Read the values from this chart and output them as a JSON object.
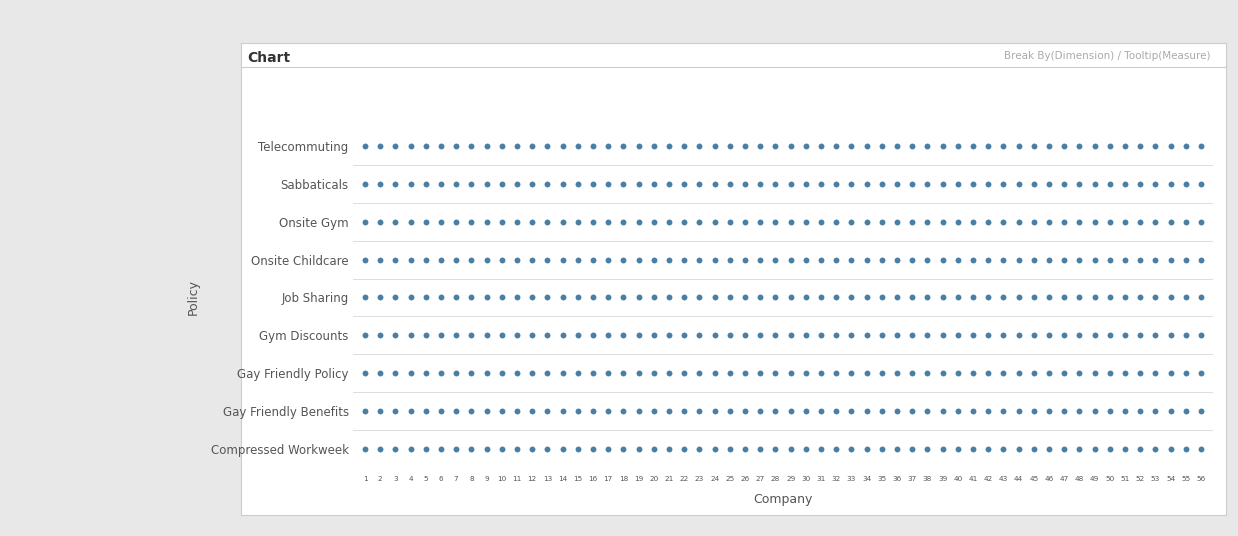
{
  "title": "Chart",
  "xlabel": "Company",
  "ylabel": "Policy",
  "policies": [
    "Telecommuting",
    "Sabbaticals",
    "Onsite Gym",
    "Onsite Childcare",
    "Job Sharing",
    "Gym Discounts",
    "Gay Friendly Policy",
    "Gay Friendly Benefits",
    "Compressed Workweek"
  ],
  "x_min": 1,
  "x_max": 56,
  "dot_color": "#4a7fa5",
  "dot_size": 18,
  "outer_bg": "#e8e8e8",
  "chart_bg": "#ffffff",
  "header_text": "Break By(Dimension) / Tooltip(Measure)",
  "title_fontsize": 10,
  "label_fontsize": 8.5,
  "axis_fontsize": 9
}
